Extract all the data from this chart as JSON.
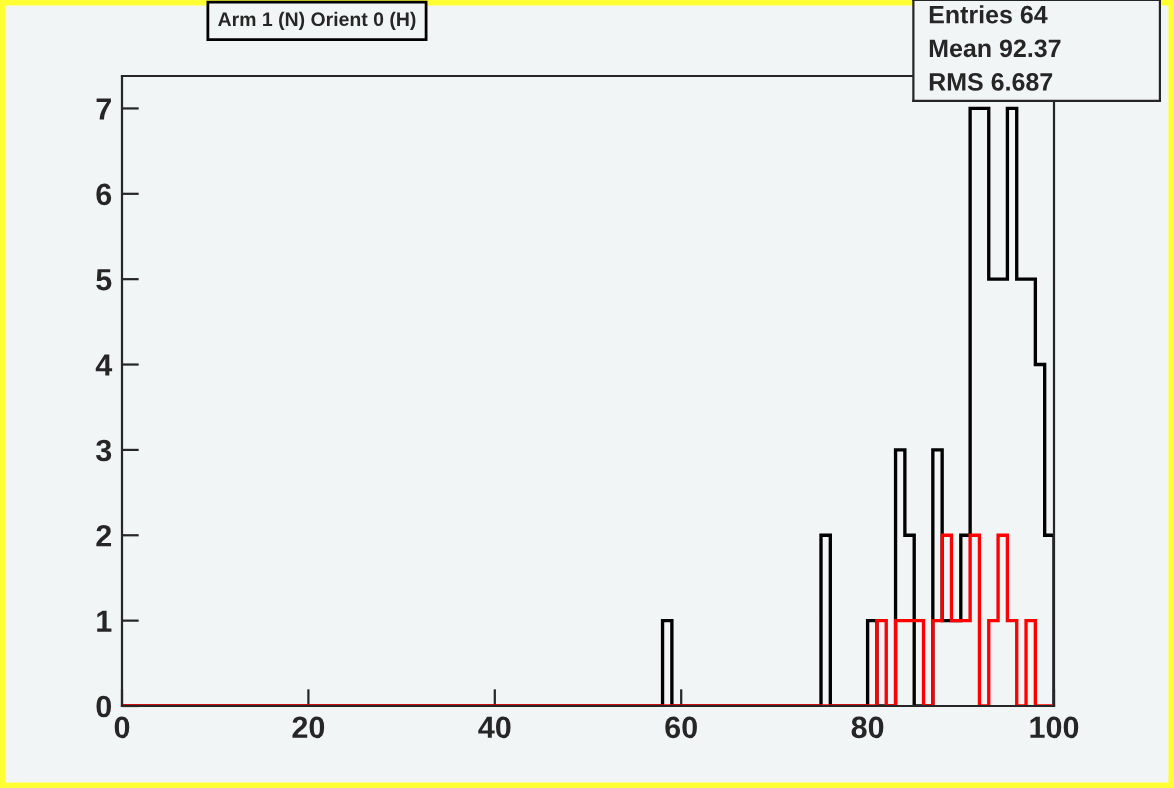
{
  "chart_data": {
    "type": "histogram",
    "title": "Arm 1 (N) Orient 0 (H)",
    "bins": [
      0,
      1,
      2,
      3,
      4,
      5,
      6,
      7,
      8,
      9,
      10,
      11,
      12,
      13,
      14,
      15,
      16,
      17,
      18,
      19,
      20,
      21,
      22,
      23,
      24,
      25,
      26,
      27,
      28,
      29,
      30,
      31,
      32,
      33,
      34,
      35,
      36,
      37,
      38,
      39,
      40,
      41,
      42,
      43,
      44,
      45,
      46,
      47,
      48,
      49,
      50,
      51,
      52,
      53,
      54,
      55,
      56,
      57,
      58,
      59,
      60,
      61,
      62,
      63,
      64,
      65,
      66,
      67,
      68,
      69,
      70,
      71,
      72,
      73,
      74,
      75,
      76,
      77,
      78,
      79,
      80,
      81,
      82,
      83,
      84,
      85,
      86,
      87,
      88,
      89,
      90,
      91,
      92,
      93,
      94,
      95,
      96,
      97,
      98,
      99,
      100
    ],
    "series": [
      {
        "color": "#000000",
        "values": [
          0,
          0,
          0,
          0,
          0,
          0,
          0,
          0,
          0,
          0,
          0,
          0,
          0,
          0,
          0,
          0,
          0,
          0,
          0,
          0,
          0,
          0,
          0,
          0,
          0,
          0,
          0,
          0,
          0,
          0,
          0,
          0,
          0,
          0,
          0,
          0,
          0,
          0,
          0,
          0,
          0,
          0,
          0,
          0,
          0,
          0,
          0,
          0,
          0,
          0,
          0,
          0,
          0,
          0,
          0,
          0,
          0,
          0,
          1,
          0,
          0,
          0,
          0,
          0,
          0,
          0,
          0,
          0,
          0,
          0,
          0,
          0,
          0,
          0,
          0,
          2,
          0,
          0,
          0,
          0,
          1,
          0,
          0,
          3,
          2,
          0,
          0,
          3,
          1,
          1,
          2,
          7,
          7,
          5,
          5,
          7,
          5,
          5,
          4,
          2
        ]
      },
      {
        "color": "#ff0000",
        "values": [
          0,
          0,
          0,
          0,
          0,
          0,
          0,
          0,
          0,
          0,
          0,
          0,
          0,
          0,
          0,
          0,
          0,
          0,
          0,
          0,
          0,
          0,
          0,
          0,
          0,
          0,
          0,
          0,
          0,
          0,
          0,
          0,
          0,
          0,
          0,
          0,
          0,
          0,
          0,
          0,
          0,
          0,
          0,
          0,
          0,
          0,
          0,
          0,
          0,
          0,
          0,
          0,
          0,
          0,
          0,
          0,
          0,
          0,
          0,
          0,
          0,
          0,
          0,
          0,
          0,
          0,
          0,
          0,
          0,
          0,
          0,
          0,
          0,
          0,
          0,
          0,
          0,
          0,
          0,
          0,
          0,
          1,
          0,
          1,
          1,
          1,
          0,
          1,
          2,
          1,
          1,
          2,
          0,
          1,
          2,
          1,
          0,
          1,
          0,
          0
        ]
      }
    ],
    "xlim": [
      0,
      100
    ],
    "xticks": [
      0,
      20,
      40,
      60,
      80,
      100
    ],
    "ylim": [
      0,
      7.38
    ],
    "yticks": [
      0,
      1,
      2,
      3,
      4,
      5,
      6,
      7
    ],
    "grid": false,
    "annotations": [
      "Entries 64",
      "Mean 92.37",
      "RMS 6.687"
    ]
  }
}
